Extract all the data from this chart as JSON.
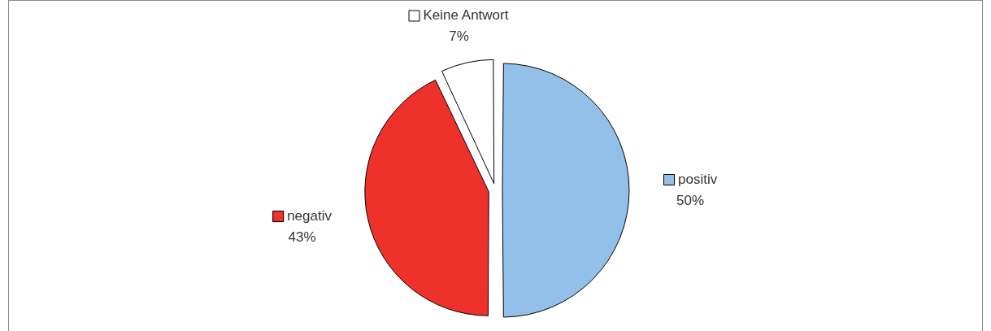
{
  "chart_data": {
    "type": "pie",
    "categories": [
      "positiv",
      "negativ",
      "Keine Antwort"
    ],
    "values": [
      50,
      43,
      7
    ],
    "colors": [
      "#93c0e8",
      "#ee322b",
      "#ffffff"
    ],
    "value_labels": [
      "50%",
      "43%",
      "7%"
    ],
    "legend": "right"
  }
}
